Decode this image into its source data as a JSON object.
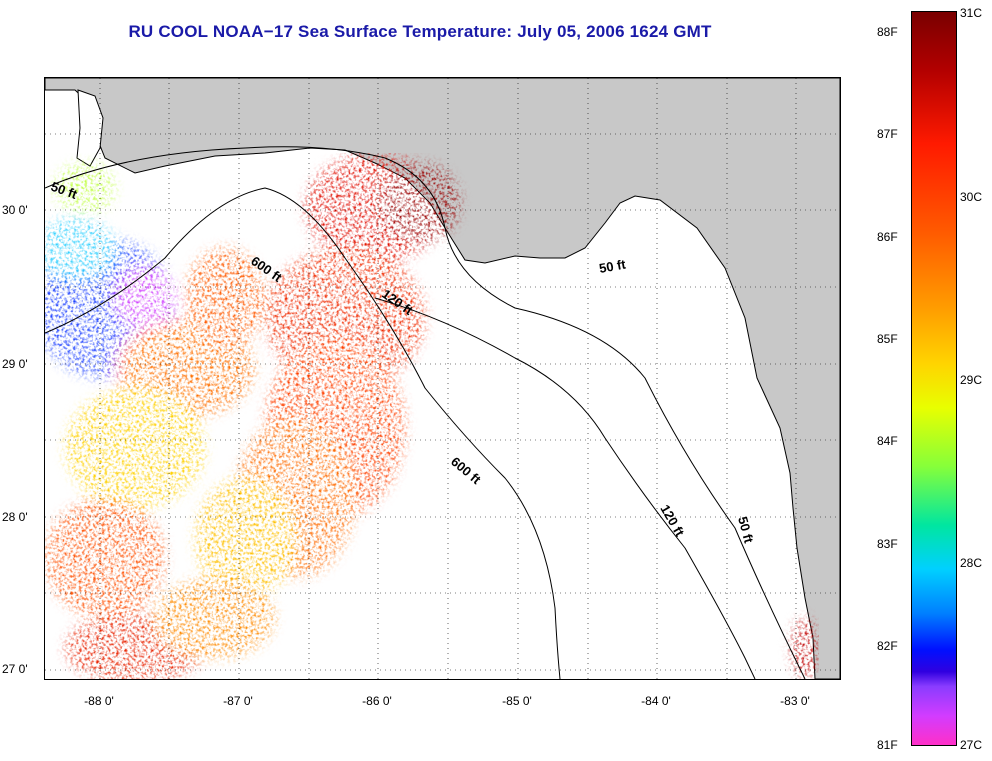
{
  "title": "RU COOL  NOAA−17  Sea Surface Temperature:  July 05, 2006 1624 GMT",
  "map": {
    "lat_labels": [
      "30 0'",
      "29 0'",
      "28 0'",
      "27 0'"
    ],
    "lon_labels": [
      "-88 0'",
      "-87 0'",
      "-86 0'",
      "-85 0'",
      "-84 0'",
      "-83 0'"
    ],
    "contour_labels": [
      "50 ft",
      "600 ft",
      "120 ft",
      "50 ft",
      "600 ft",
      "120 ft",
      "50 ft"
    ],
    "colors": {
      "land": "#c8c8c8",
      "water": "#ffffff",
      "grid": "#000000"
    }
  },
  "colorbar": {
    "fahrenheit_labels": [
      "88F",
      "87F",
      "86F",
      "85F",
      "84F",
      "83F",
      "82F",
      "81F"
    ],
    "celsius_labels": [
      "31C",
      "30C",
      "29C",
      "28C",
      "27C"
    ]
  }
}
